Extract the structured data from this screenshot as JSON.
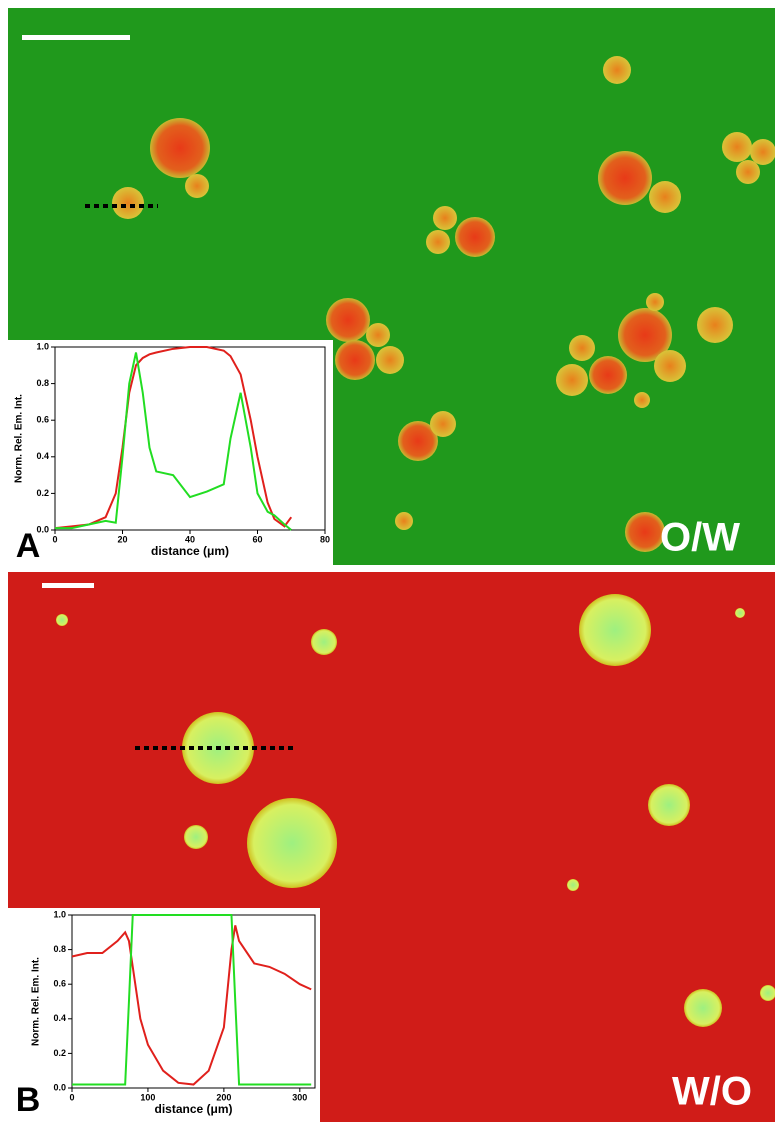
{
  "chart_data": [
    {
      "type": "line",
      "panel_label": "A",
      "annotation": "O/W",
      "x_label": "distance (μm)",
      "y_label": "Norm. Rel. Em. Int.",
      "x": [
        0,
        5,
        10,
        15,
        18,
        20,
        22,
        24,
        26,
        28,
        30,
        35,
        40,
        45,
        50,
        52,
        55,
        58,
        60,
        63,
        65,
        68,
        70
      ],
      "series": [
        {
          "color": "#e0201c",
          "values": [
            0.01,
            0.02,
            0.03,
            0.07,
            0.2,
            0.45,
            0.75,
            0.9,
            0.94,
            0.96,
            0.97,
            0.99,
            1.0,
            1.0,
            0.98,
            0.95,
            0.85,
            0.6,
            0.4,
            0.15,
            0.06,
            0.02,
            0.07
          ]
        },
        {
          "color": "#22dd22",
          "values": [
            0.01,
            0.01,
            0.03,
            0.05,
            0.04,
            0.4,
            0.8,
            0.97,
            0.75,
            0.45,
            0.32,
            0.3,
            0.18,
            0.21,
            0.25,
            0.5,
            0.75,
            0.45,
            0.2,
            0.1,
            0.08,
            0.03,
            0.0
          ]
        }
      ],
      "xlim": [
        0,
        80
      ],
      "xticks": [
        0,
        20,
        40,
        60,
        80
      ],
      "ylim": [
        0,
        1
      ],
      "yticks": [
        {
          "value": 0,
          "label": "0.0"
        },
        0.2,
        0.4,
        0.6,
        0.8,
        {
          "value": 1,
          "label": "1.0"
        }
      ]
    },
    {
      "type": "line",
      "panel_label": "B",
      "annotation": "W/O",
      "x_label": "distance (μm)",
      "y_label": "Norm. Rel. Em. Int.",
      "x": [
        0,
        20,
        40,
        60,
        70,
        75,
        80,
        90,
        100,
        120,
        140,
        160,
        180,
        200,
        210,
        215,
        220,
        240,
        260,
        280,
        300,
        315
      ],
      "series": [
        {
          "color": "#e0201c",
          "values": [
            0.76,
            0.78,
            0.78,
            0.85,
            0.9,
            0.85,
            0.7,
            0.4,
            0.25,
            0.1,
            0.03,
            0.02,
            0.1,
            0.35,
            0.8,
            0.94,
            0.85,
            0.72,
            0.7,
            0.66,
            0.6,
            0.57
          ]
        },
        {
          "color": "#22dd22",
          "values": [
            0.02,
            0.02,
            0.02,
            0.02,
            0.02,
            0.5,
            1.0,
            1.0,
            1.0,
            1.0,
            1.0,
            1.0,
            1.0,
            1.0,
            1.0,
            0.5,
            0.02,
            0.02,
            0.02,
            0.02,
            0.02,
            0.02
          ]
        }
      ],
      "xlim": [
        0,
        320
      ],
      "xticks": [
        0,
        100,
        200,
        300
      ],
      "ylim": [
        0,
        1
      ],
      "yticks": [
        {
          "value": 0,
          "label": "0.0"
        },
        0.2,
        0.4,
        0.6,
        0.8,
        {
          "value": 1,
          "label": "1.0"
        }
      ]
    }
  ]
}
